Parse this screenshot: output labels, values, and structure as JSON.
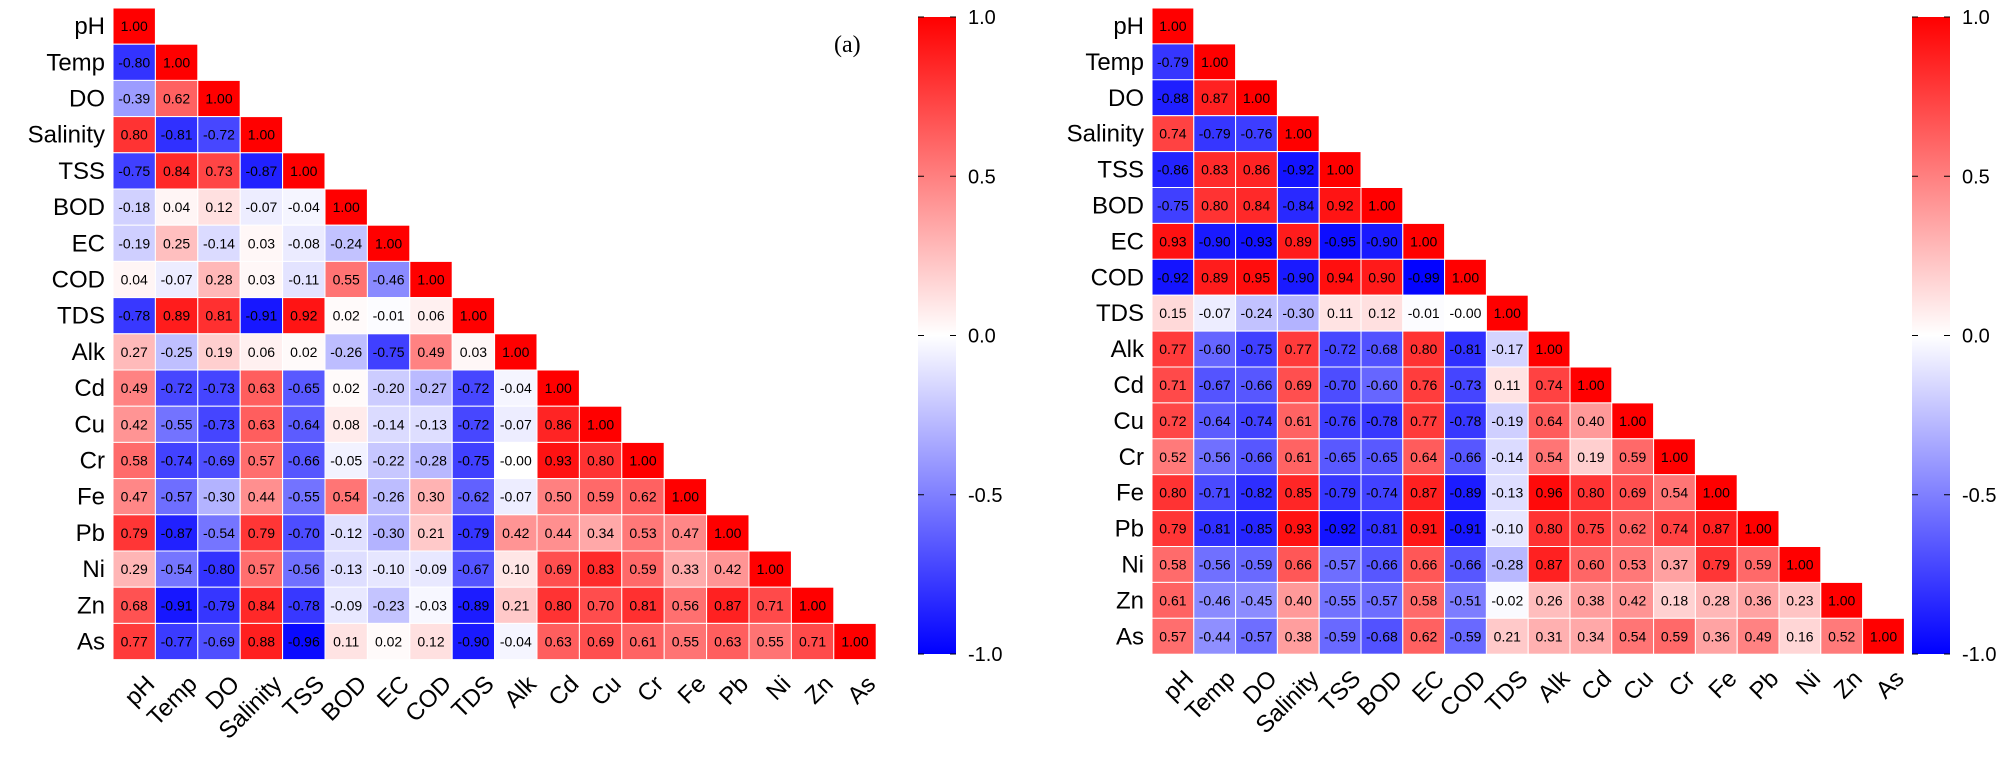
{
  "chart_data": [
    {
      "type": "heatmap",
      "title": "",
      "panel_label": "(a)",
      "variables": [
        "pH",
        "Temp",
        "DO",
        "Salinity",
        "TSS",
        "BOD",
        "EC",
        "COD",
        "TDS",
        "Alk",
        "Cd",
        "Cu",
        "Cr",
        "Fe",
        "Pb",
        "Ni",
        "Zn",
        "As"
      ],
      "values": [
        [
          "1.00"
        ],
        [
          "-0.80",
          "1.00"
        ],
        [
          "-0.39",
          "0.62",
          "1.00"
        ],
        [
          "0.80",
          "-0.81",
          "-0.72",
          "1.00"
        ],
        [
          "-0.75",
          "0.84",
          "0.73",
          "-0.87",
          "1.00"
        ],
        [
          "-0.18",
          "0.04",
          "0.12",
          "-0.07",
          "-0.04",
          "1.00"
        ],
        [
          "-0.19",
          "0.25",
          "-0.14",
          "0.03",
          "-0.08",
          "-0.24",
          "1.00"
        ],
        [
          "0.04",
          "-0.07",
          "0.28",
          "0.03",
          "-0.11",
          "0.55",
          "-0.46",
          "1.00"
        ],
        [
          "-0.78",
          "0.89",
          "0.81",
          "-0.91",
          "0.92",
          "0.02",
          "-0.01",
          "0.06",
          "1.00"
        ],
        [
          "0.27",
          "-0.25",
          "0.19",
          "0.06",
          "0.02",
          "-0.26",
          "-0.75",
          "0.49",
          "0.03",
          "1.00"
        ],
        [
          "0.49",
          "-0.72",
          "-0.73",
          "0.63",
          "-0.65",
          "0.02",
          "-0.20",
          "-0.27",
          "-0.72",
          "-0.04",
          "1.00"
        ],
        [
          "0.42",
          "-0.55",
          "-0.73",
          "0.63",
          "-0.64",
          "0.08",
          "-0.14",
          "-0.13",
          "-0.72",
          "-0.07",
          "0.86",
          "1.00"
        ],
        [
          "0.58",
          "-0.74",
          "-0.69",
          "0.57",
          "-0.66",
          "-0.05",
          "-0.22",
          "-0.28",
          "-0.75",
          "-0.00",
          "0.93",
          "0.80",
          "1.00"
        ],
        [
          "0.47",
          "-0.57",
          "-0.30",
          "0.44",
          "-0.55",
          "0.54",
          "-0.26",
          "0.30",
          "-0.62",
          "-0.07",
          "0.50",
          "0.59",
          "0.62",
          "1.00"
        ],
        [
          "0.79",
          "-0.87",
          "-0.54",
          "0.79",
          "-0.70",
          "-0.12",
          "-0.30",
          "0.21",
          "-0.79",
          "0.42",
          "0.44",
          "0.34",
          "0.53",
          "0.47",
          "1.00"
        ],
        [
          "0.29",
          "-0.54",
          "-0.80",
          "0.57",
          "-0.56",
          "-0.13",
          "-0.10",
          "-0.09",
          "-0.67",
          "0.10",
          "0.69",
          "0.83",
          "0.59",
          "0.33",
          "0.42",
          "1.00"
        ],
        [
          "0.68",
          "-0.91",
          "-0.79",
          "0.84",
          "-0.78",
          "-0.09",
          "-0.23",
          "-0.03",
          "-0.89",
          "0.21",
          "0.80",
          "0.70",
          "0.81",
          "0.56",
          "0.87",
          "0.71",
          "1.00"
        ],
        [
          "0.77",
          "-0.77",
          "-0.69",
          "0.88",
          "-0.96",
          "0.11",
          "0.02",
          "0.12",
          "-0.90",
          "-0.04",
          "0.63",
          "0.69",
          "0.61",
          "0.55",
          "0.63",
          "0.55",
          "0.71",
          "1.00"
        ]
      ],
      "colorbar": {
        "ticks": [
          "1.0",
          "0.5",
          "0.0",
          "-0.5",
          "-1.0"
        ],
        "range": [
          -1,
          1
        ],
        "colors": {
          "low": "#0000ff",
          "mid": "#ffffff",
          "high": "#ff0000"
        }
      }
    },
    {
      "type": "heatmap",
      "title": "",
      "panel_label": "",
      "variables": [
        "pH",
        "Temp",
        "DO",
        "Salinity",
        "TSS",
        "BOD",
        "EC",
        "COD",
        "TDS",
        "Alk",
        "Cd",
        "Cu",
        "Cr",
        "Fe",
        "Pb",
        "Ni",
        "Zn",
        "As"
      ],
      "values": [
        [
          "1.00"
        ],
        [
          "-0.79",
          "1.00"
        ],
        [
          "-0.88",
          "0.87",
          "1.00"
        ],
        [
          "0.74",
          "-0.79",
          "-0.76",
          "1.00"
        ],
        [
          "-0.86",
          "0.83",
          "0.86",
          "-0.92",
          "1.00"
        ],
        [
          "-0.75",
          "0.80",
          "0.84",
          "-0.84",
          "0.92",
          "1.00"
        ],
        [
          "0.93",
          "-0.90",
          "-0.93",
          "0.89",
          "-0.95",
          "-0.90",
          "1.00"
        ],
        [
          "-0.92",
          "0.89",
          "0.95",
          "-0.90",
          "0.94",
          "0.90",
          "-0.99",
          "1.00"
        ],
        [
          "0.15",
          "-0.07",
          "-0.24",
          "-0.30",
          "0.11",
          "0.12",
          "-0.01",
          "-0.00",
          "1.00"
        ],
        [
          "0.77",
          "-0.60",
          "-0.75",
          "0.77",
          "-0.72",
          "-0.68",
          "0.80",
          "-0.81",
          "-0.17",
          "1.00"
        ],
        [
          "0.71",
          "-0.67",
          "-0.66",
          "0.69",
          "-0.70",
          "-0.60",
          "0.76",
          "-0.73",
          "0.11",
          "0.74",
          "1.00"
        ],
        [
          "0.72",
          "-0.64",
          "-0.74",
          "0.61",
          "-0.76",
          "-0.78",
          "0.77",
          "-0.78",
          "-0.19",
          "0.64",
          "0.40",
          "1.00"
        ],
        [
          "0.52",
          "-0.56",
          "-0.66",
          "0.61",
          "-0.65",
          "-0.65",
          "0.64",
          "-0.66",
          "-0.14",
          "0.54",
          "0.19",
          "0.59",
          "1.00"
        ],
        [
          "0.80",
          "-0.71",
          "-0.82",
          "0.85",
          "-0.79",
          "-0.74",
          "0.87",
          "-0.89",
          "-0.13",
          "0.96",
          "0.80",
          "0.69",
          "0.54",
          "1.00"
        ],
        [
          "0.79",
          "-0.81",
          "-0.85",
          "0.93",
          "-0.92",
          "-0.81",
          "0.91",
          "-0.91",
          "-0.10",
          "0.80",
          "0.75",
          "0.62",
          "0.74",
          "0.87",
          "1.00"
        ],
        [
          "0.58",
          "-0.56",
          "-0.59",
          "0.66",
          "-0.57",
          "-0.66",
          "0.66",
          "-0.66",
          "-0.28",
          "0.87",
          "0.60",
          "0.53",
          "0.37",
          "0.79",
          "0.59",
          "1.00"
        ],
        [
          "0.61",
          "-0.46",
          "-0.45",
          "0.40",
          "-0.55",
          "-0.57",
          "0.58",
          "-0.51",
          "-0.02",
          "0.26",
          "0.38",
          "0.42",
          "0.18",
          "0.28",
          "0.36",
          "0.23",
          "1.00"
        ],
        [
          "0.57",
          "-0.44",
          "-0.57",
          "0.38",
          "-0.59",
          "-0.68",
          "0.62",
          "-0.59",
          "0.21",
          "0.31",
          "0.34",
          "0.54",
          "0.59",
          "0.36",
          "0.49",
          "0.16",
          "0.52",
          "1.00"
        ]
      ],
      "colorbar": {
        "ticks": [
          "1.0",
          "0.5",
          "0.0",
          "-0.5",
          "-1.0"
        ],
        "range": [
          -1,
          1
        ],
        "colors": {
          "low": "#0000ff",
          "mid": "#ffffff",
          "high": "#ff0000"
        }
      }
    }
  ]
}
